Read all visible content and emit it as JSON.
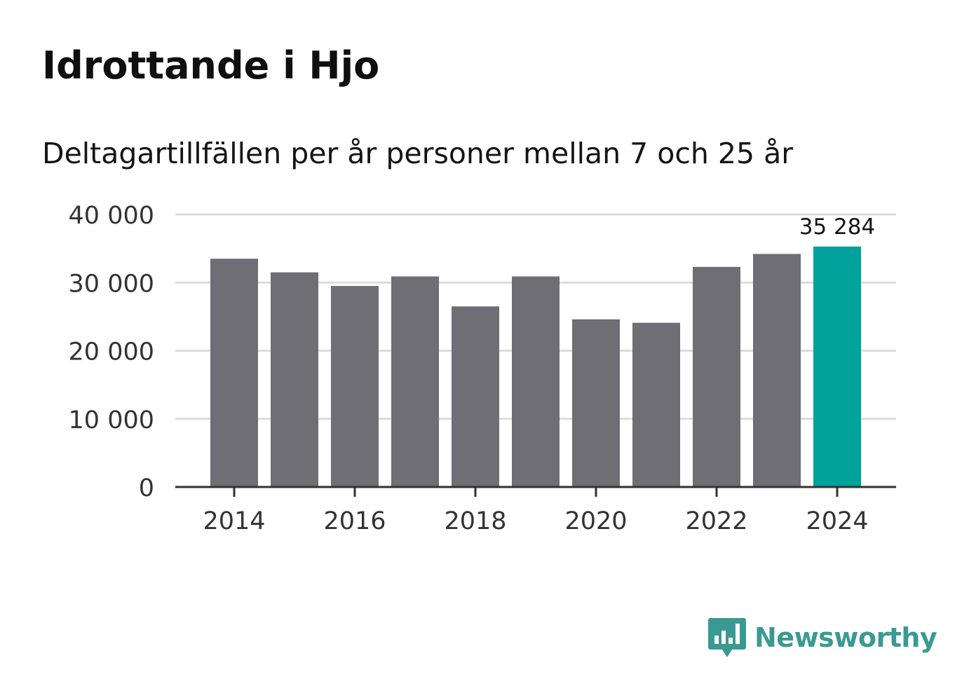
{
  "title": "Idrottande i Hjo",
  "subtitle": "Deltagartillfällen per år personer mellan 7 och 25 år",
  "brand": {
    "name": "Newsworthy",
    "color": "#3a9a93",
    "icon": "bar-chart-speech-bubble-icon"
  },
  "colors": {
    "bar": "#6f6e74",
    "highlight": "#00a399",
    "grid": "#dcdcdc",
    "axis": "#333333",
    "text": "#333333"
  },
  "chart_data": {
    "type": "bar",
    "title": "Idrottande i Hjo",
    "subtitle": "Deltagartillfällen per år personer mellan 7 och 25 år",
    "xlabel": "",
    "ylabel": "",
    "categories": [
      "2014",
      "2015",
      "2016",
      "2017",
      "2018",
      "2019",
      "2020",
      "2021",
      "2022",
      "2023",
      "2024"
    ],
    "values": [
      33500,
      31500,
      29500,
      30900,
      26500,
      30900,
      24600,
      24100,
      32300,
      34200,
      35284
    ],
    "ylim": [
      0,
      40000
    ],
    "yticks": [
      0,
      10000,
      20000,
      30000,
      40000
    ],
    "ytick_labels": [
      "0",
      "10 000",
      "20 000",
      "30 000",
      "40 000"
    ],
    "xtick_labels": [
      "2014",
      "2016",
      "2018",
      "2020",
      "2022",
      "2024"
    ],
    "grid": true,
    "highlight_index": 10,
    "annotation": {
      "category": "2024",
      "text": "35 284"
    }
  }
}
